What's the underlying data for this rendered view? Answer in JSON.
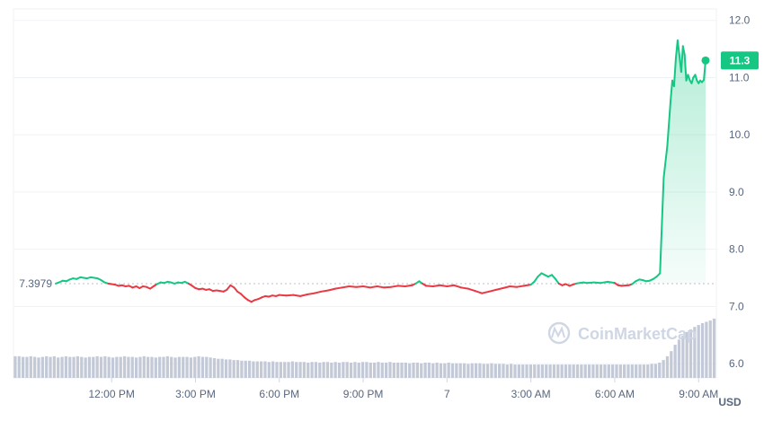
{
  "chart_data": {
    "type": "line",
    "y_axis": {
      "ticks": [
        "12.0",
        "11.0",
        "10.0",
        "9.0",
        "8.0",
        "7.0",
        "6.0"
      ],
      "unit": "USD",
      "range": [
        5.75,
        12.2
      ]
    },
    "x_axis": {
      "ticks": [
        "12:00 PM",
        "3:00 PM",
        "6:00 PM",
        "9:00 PM",
        "7",
        "3:00 AM",
        "6:00 AM",
        "9:00 AM"
      ]
    },
    "reference_price": "7.3979",
    "current_price": "11.3",
    "watermark": "CoinMarketCap",
    "colors": {
      "up": "#16c784",
      "down": "#ea3943",
      "grid": "#eff2f5",
      "volume": "#c3c9d6",
      "axis_text": "#58667e",
      "area_fill": "#16c784",
      "watermark": "#cfd6e4"
    },
    "series": [
      {
        "values": [
          [
            0.0,
            7.4
          ],
          [
            0.12,
            7.42
          ],
          [
            0.25,
            7.45
          ],
          [
            0.38,
            7.44
          ],
          [
            0.5,
            7.47
          ],
          [
            0.62,
            7.49
          ],
          [
            0.75,
            7.48
          ],
          [
            0.88,
            7.51
          ],
          [
            1.0,
            7.5
          ],
          [
            1.12,
            7.49
          ],
          [
            1.25,
            7.51
          ],
          [
            1.38,
            7.5
          ],
          [
            1.5,
            7.49
          ],
          [
            1.62,
            7.46
          ],
          [
            1.75,
            7.42
          ],
          [
            1.88,
            7.4
          ],
          [
            2.0,
            7.39
          ],
          [
            2.12,
            7.38
          ],
          [
            2.25,
            7.36
          ],
          [
            2.38,
            7.37
          ],
          [
            2.5,
            7.35
          ],
          [
            2.62,
            7.36
          ],
          [
            2.75,
            7.33
          ],
          [
            2.88,
            7.35
          ],
          [
            3.0,
            7.32
          ],
          [
            3.12,
            7.35
          ],
          [
            3.25,
            7.34
          ],
          [
            3.38,
            7.31
          ],
          [
            3.5,
            7.35
          ],
          [
            3.62,
            7.39
          ],
          [
            3.75,
            7.42
          ],
          [
            3.88,
            7.41
          ],
          [
            4.0,
            7.43
          ],
          [
            4.12,
            7.42
          ],
          [
            4.25,
            7.4
          ],
          [
            4.38,
            7.42
          ],
          [
            4.5,
            7.41
          ],
          [
            4.62,
            7.43
          ],
          [
            4.75,
            7.4
          ],
          [
            4.88,
            7.36
          ],
          [
            5.0,
            7.32
          ],
          [
            5.12,
            7.3
          ],
          [
            5.25,
            7.31
          ],
          [
            5.38,
            7.29
          ],
          [
            5.5,
            7.3
          ],
          [
            5.62,
            7.27
          ],
          [
            5.75,
            7.28
          ],
          [
            5.88,
            7.27
          ],
          [
            6.0,
            7.26
          ],
          [
            6.12,
            7.29
          ],
          [
            6.25,
            7.37
          ],
          [
            6.38,
            7.33
          ],
          [
            6.5,
            7.26
          ],
          [
            6.62,
            7.22
          ],
          [
            6.75,
            7.16
          ],
          [
            6.88,
            7.11
          ],
          [
            7.0,
            7.08
          ],
          [
            7.12,
            7.11
          ],
          [
            7.25,
            7.13
          ],
          [
            7.38,
            7.16
          ],
          [
            7.5,
            7.18
          ],
          [
            7.62,
            7.17
          ],
          [
            7.75,
            7.19
          ],
          [
            7.88,
            7.18
          ],
          [
            8.0,
            7.2
          ],
          [
            8.25,
            7.19
          ],
          [
            8.5,
            7.2
          ],
          [
            8.75,
            7.18
          ],
          [
            9.0,
            7.21
          ],
          [
            9.25,
            7.23
          ],
          [
            9.5,
            7.26
          ],
          [
            9.75,
            7.28
          ],
          [
            10.0,
            7.31
          ],
          [
            10.25,
            7.33
          ],
          [
            10.5,
            7.35
          ],
          [
            10.75,
            7.34
          ],
          [
            11.0,
            7.35
          ],
          [
            11.25,
            7.33
          ],
          [
            11.5,
            7.35
          ],
          [
            11.75,
            7.33
          ],
          [
            12.0,
            7.34
          ],
          [
            12.25,
            7.36
          ],
          [
            12.5,
            7.35
          ],
          [
            12.75,
            7.37
          ],
          [
            12.88,
            7.4
          ],
          [
            13.0,
            7.44
          ],
          [
            13.12,
            7.4
          ],
          [
            13.25,
            7.36
          ],
          [
            13.5,
            7.35
          ],
          [
            13.75,
            7.37
          ],
          [
            14.0,
            7.35
          ],
          [
            14.25,
            7.37
          ],
          [
            14.5,
            7.33
          ],
          [
            14.75,
            7.31
          ],
          [
            15.0,
            7.27
          ],
          [
            15.25,
            7.23
          ],
          [
            15.5,
            7.26
          ],
          [
            15.75,
            7.29
          ],
          [
            16.0,
            7.32
          ],
          [
            16.25,
            7.35
          ],
          [
            16.5,
            7.34
          ],
          [
            16.75,
            7.36
          ],
          [
            17.0,
            7.38
          ],
          [
            17.12,
            7.43
          ],
          [
            17.25,
            7.52
          ],
          [
            17.38,
            7.58
          ],
          [
            17.5,
            7.55
          ],
          [
            17.62,
            7.52
          ],
          [
            17.75,
            7.55
          ],
          [
            17.88,
            7.48
          ],
          [
            18.0,
            7.4
          ],
          [
            18.12,
            7.37
          ],
          [
            18.25,
            7.39
          ],
          [
            18.38,
            7.36
          ],
          [
            18.5,
            7.38
          ],
          [
            18.62,
            7.4
          ],
          [
            18.75,
            7.41
          ],
          [
            18.88,
            7.42
          ],
          [
            19.0,
            7.41
          ],
          [
            19.25,
            7.42
          ],
          [
            19.5,
            7.41
          ],
          [
            19.75,
            7.43
          ],
          [
            19.88,
            7.42
          ],
          [
            20.0,
            7.41
          ],
          [
            20.12,
            7.37
          ],
          [
            20.25,
            7.36
          ],
          [
            20.5,
            7.37
          ],
          [
            20.62,
            7.39
          ],
          [
            20.75,
            7.44
          ],
          [
            20.88,
            7.47
          ],
          [
            21.0,
            7.46
          ],
          [
            21.12,
            7.44
          ],
          [
            21.25,
            7.45
          ],
          [
            21.38,
            7.48
          ],
          [
            21.5,
            7.52
          ],
          [
            21.62,
            7.58
          ],
          [
            21.75,
            9.25
          ],
          [
            21.88,
            9.8
          ],
          [
            22.0,
            10.6
          ],
          [
            22.06,
            10.95
          ],
          [
            22.12,
            10.85
          ],
          [
            22.19,
            11.35
          ],
          [
            22.25,
            11.65
          ],
          [
            22.31,
            11.4
          ],
          [
            22.38,
            11.1
          ],
          [
            22.44,
            11.55
          ],
          [
            22.5,
            11.4
          ],
          [
            22.56,
            10.95
          ],
          [
            22.62,
            11.05
          ],
          [
            22.69,
            10.95
          ],
          [
            22.75,
            10.9
          ],
          [
            22.81,
            11.0
          ],
          [
            22.88,
            11.05
          ],
          [
            22.94,
            10.95
          ],
          [
            23.0,
            10.9
          ],
          [
            23.06,
            10.95
          ],
          [
            23.12,
            10.92
          ],
          [
            23.19,
            10.96
          ],
          [
            23.25,
            11.3
          ]
        ]
      }
    ],
    "volume": {
      "values": [
        0.34,
        0.34,
        0.33,
        0.33,
        0.34,
        0.33,
        0.32,
        0.33,
        0.34,
        0.33,
        0.34,
        0.32,
        0.33,
        0.34,
        0.33,
        0.33,
        0.34,
        0.33,
        0.32,
        0.33,
        0.33,
        0.34,
        0.33,
        0.34,
        0.33,
        0.32,
        0.33,
        0.33,
        0.34,
        0.33,
        0.33,
        0.32,
        0.33,
        0.34,
        0.33,
        0.33,
        0.32,
        0.33,
        0.33,
        0.34,
        0.33,
        0.32,
        0.33,
        0.33,
        0.33,
        0.32,
        0.33,
        0.34,
        0.33,
        0.33,
        0.32,
        0.31,
        0.3,
        0.3,
        0.29,
        0.29,
        0.28,
        0.28,
        0.27,
        0.27,
        0.27,
        0.26,
        0.26,
        0.26,
        0.26,
        0.25,
        0.26,
        0.25,
        0.25,
        0.25,
        0.25,
        0.26,
        0.25,
        0.25,
        0.25,
        0.24,
        0.25,
        0.25,
        0.24,
        0.25,
        0.25,
        0.24,
        0.25,
        0.24,
        0.25,
        0.25,
        0.24,
        0.25,
        0.24,
        0.25,
        0.25,
        0.24,
        0.24,
        0.25,
        0.24,
        0.24,
        0.25,
        0.24,
        0.24,
        0.24,
        0.24,
        0.23,
        0.24,
        0.24,
        0.23,
        0.24,
        0.24,
        0.23,
        0.24,
        0.23,
        0.23,
        0.24,
        0.23,
        0.23,
        0.23,
        0.23,
        0.22,
        0.23,
        0.23,
        0.23,
        0.22,
        0.22,
        0.23,
        0.22,
        0.22,
        0.22,
        0.21,
        0.22,
        0.21,
        0.21,
        0.21,
        0.21,
        0.21,
        0.21,
        0.21,
        0.21,
        0.21,
        0.21,
        0.21,
        0.21,
        0.21,
        0.21,
        0.21,
        0.21,
        0.21,
        0.21,
        0.21,
        0.21,
        0.21,
        0.21,
        0.21,
        0.21,
        0.21,
        0.21,
        0.21,
        0.21,
        0.21,
        0.21,
        0.21,
        0.21,
        0.21,
        0.21,
        0.21,
        0.22,
        0.22,
        0.24,
        0.28,
        0.34,
        0.42,
        0.52,
        0.6,
        0.66,
        0.72,
        0.76,
        0.8,
        0.83,
        0.86,
        0.88,
        0.9,
        0.93
      ]
    }
  }
}
